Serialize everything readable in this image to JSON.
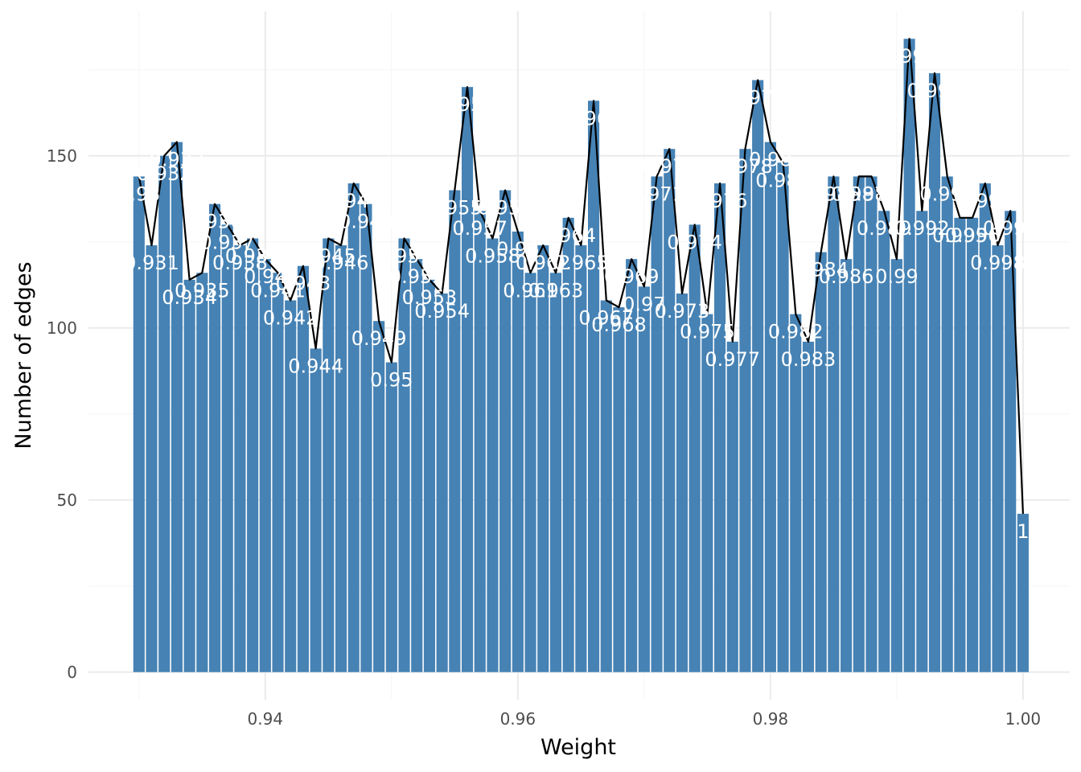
{
  "chart_data": {
    "type": "bar",
    "xlabel": "Weight",
    "ylabel": "Number of edges",
    "xlim": [
      0.926,
      1.0037
    ],
    "ylim": [
      -8,
      192
    ],
    "x_ticks": [
      0.94,
      0.96,
      0.98,
      1.0
    ],
    "x_tick_labels": [
      "0.94",
      "0.96",
      "0.98",
      "1.00"
    ],
    "y_ticks": [
      0,
      50,
      100,
      150
    ],
    "y_tick_labels": [
      "0",
      "50",
      "100",
      "150"
    ],
    "grid": true,
    "legend": "none",
    "bar_color": "#4682b4",
    "line_color": "#000000",
    "label_color": "#ffffff",
    "bar_width": 0.0009,
    "bars": [
      {
        "x": 0.93,
        "value": 144,
        "label": "0.93"
      },
      {
        "x": 0.931,
        "value": 124,
        "label": "0.931"
      },
      {
        "x": 0.932,
        "value": 150,
        "label": "0.932"
      },
      {
        "x": 0.933,
        "value": 154,
        "label": "0.933"
      },
      {
        "x": 0.934,
        "value": 114,
        "label": "0.934"
      },
      {
        "x": 0.935,
        "value": 116,
        "label": "0.935"
      },
      {
        "x": 0.936,
        "value": 136,
        "label": "0.936"
      },
      {
        "x": 0.937,
        "value": 130,
        "label": "0.937"
      },
      {
        "x": 0.938,
        "value": 124,
        "label": "0.938"
      },
      {
        "x": 0.939,
        "value": 126,
        "label": "0.939"
      },
      {
        "x": 0.94,
        "value": 120,
        "label": "0.94"
      },
      {
        "x": 0.941,
        "value": 116,
        "label": "0.941"
      },
      {
        "x": 0.942,
        "value": 108,
        "label": "0.942"
      },
      {
        "x": 0.943,
        "value": 118,
        "label": "0.943"
      },
      {
        "x": 0.944,
        "value": 94,
        "label": "0.944"
      },
      {
        "x": 0.945,
        "value": 126,
        "label": "0.945"
      },
      {
        "x": 0.946,
        "value": 124,
        "label": "0.946"
      },
      {
        "x": 0.947,
        "value": 142,
        "label": "0.947"
      },
      {
        "x": 0.948,
        "value": 136,
        "label": "0.948"
      },
      {
        "x": 0.949,
        "value": 102,
        "label": "0.949"
      },
      {
        "x": 0.95,
        "value": 90,
        "label": "0.95"
      },
      {
        "x": 0.951,
        "value": 126,
        "label": "0.951"
      },
      {
        "x": 0.952,
        "value": 120,
        "label": "0.952"
      },
      {
        "x": 0.953,
        "value": 114,
        "label": "0.953"
      },
      {
        "x": 0.954,
        "value": 110,
        "label": "0.954"
      },
      {
        "x": 0.955,
        "value": 140,
        "label": "0.955"
      },
      {
        "x": 0.956,
        "value": 170,
        "label": "0.956"
      },
      {
        "x": 0.957,
        "value": 134,
        "label": "0.957"
      },
      {
        "x": 0.958,
        "value": 126,
        "label": "0.958"
      },
      {
        "x": 0.959,
        "value": 140,
        "label": "0.959"
      },
      {
        "x": 0.96,
        "value": 128,
        "label": "0.96"
      },
      {
        "x": 0.961,
        "value": 116,
        "label": "0.961"
      },
      {
        "x": 0.962,
        "value": 124,
        "label": "0.962"
      },
      {
        "x": 0.963,
        "value": 116,
        "label": "0.963"
      },
      {
        "x": 0.964,
        "value": 132,
        "label": "0.964"
      },
      {
        "x": 0.965,
        "value": 124,
        "label": "0.965"
      },
      {
        "x": 0.966,
        "value": 166,
        "label": "0.966"
      },
      {
        "x": 0.967,
        "value": 108,
        "label": "0.967"
      },
      {
        "x": 0.968,
        "value": 106,
        "label": "0.968"
      },
      {
        "x": 0.969,
        "value": 120,
        "label": "0.969"
      },
      {
        "x": 0.97,
        "value": 112,
        "label": "0.97"
      },
      {
        "x": 0.971,
        "value": 144,
        "label": "0.971"
      },
      {
        "x": 0.972,
        "value": 152,
        "label": "0.972"
      },
      {
        "x": 0.973,
        "value": 110,
        "label": "0.973"
      },
      {
        "x": 0.974,
        "value": 130,
        "label": "0.974"
      },
      {
        "x": 0.975,
        "value": 104,
        "label": "0.975"
      },
      {
        "x": 0.976,
        "value": 142,
        "label": "0.976"
      },
      {
        "x": 0.977,
        "value": 96,
        "label": "0.977"
      },
      {
        "x": 0.978,
        "value": 152,
        "label": "0.978"
      },
      {
        "x": 0.979,
        "value": 172,
        "label": "0.979"
      },
      {
        "x": 0.98,
        "value": 154,
        "label": "0.98"
      },
      {
        "x": 0.981,
        "value": 148,
        "label": "0.981"
      },
      {
        "x": 0.982,
        "value": 104,
        "label": "0.982"
      },
      {
        "x": 0.983,
        "value": 96,
        "label": "0.983"
      },
      {
        "x": 0.984,
        "value": 122,
        "label": "0.984"
      },
      {
        "x": 0.985,
        "value": 144,
        "label": "0.985"
      },
      {
        "x": 0.986,
        "value": 120,
        "label": "0.986"
      },
      {
        "x": 0.987,
        "value": 144,
        "label": "0.987"
      },
      {
        "x": 0.988,
        "value": 144,
        "label": "0.988"
      },
      {
        "x": 0.989,
        "value": 134,
        "label": "0.989"
      },
      {
        "x": 0.99,
        "value": 120,
        "label": "0.99"
      },
      {
        "x": 0.991,
        "value": 184,
        "label": "0.991"
      },
      {
        "x": 0.992,
        "value": 134,
        "label": "0.992"
      },
      {
        "x": 0.993,
        "value": 174,
        "label": "0.993"
      },
      {
        "x": 0.994,
        "value": 144,
        "label": "0.994"
      },
      {
        "x": 0.995,
        "value": 132,
        "label": "0.995"
      },
      {
        "x": 0.996,
        "value": 132,
        "label": "0.996"
      },
      {
        "x": 0.997,
        "value": 142,
        "label": "0.997"
      },
      {
        "x": 0.998,
        "value": 124,
        "label": "0.998"
      },
      {
        "x": 0.999,
        "value": 134,
        "label": "0.999"
      },
      {
        "x": 1.0,
        "value": 46,
        "label": "1"
      }
    ]
  }
}
